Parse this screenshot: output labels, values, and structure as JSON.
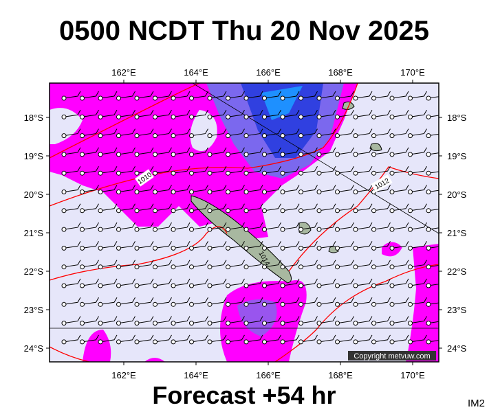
{
  "title": "0500 NCDT Thu 20 Nov 2025",
  "map": {
    "lon_labels": [
      "162°E",
      "164°E",
      "166°E",
      "168°E",
      "170°E"
    ],
    "lat_labels": [
      "18°S",
      "19°S",
      "20°S",
      "21°S",
      "22°S",
      "23°S",
      "24°S"
    ],
    "isobar_labels": [
      "1010",
      "1012",
      "1014"
    ],
    "copyright": "Copyright metvuw.com"
  },
  "footer": "Forecast +54 hr",
  "code": "IM2"
}
